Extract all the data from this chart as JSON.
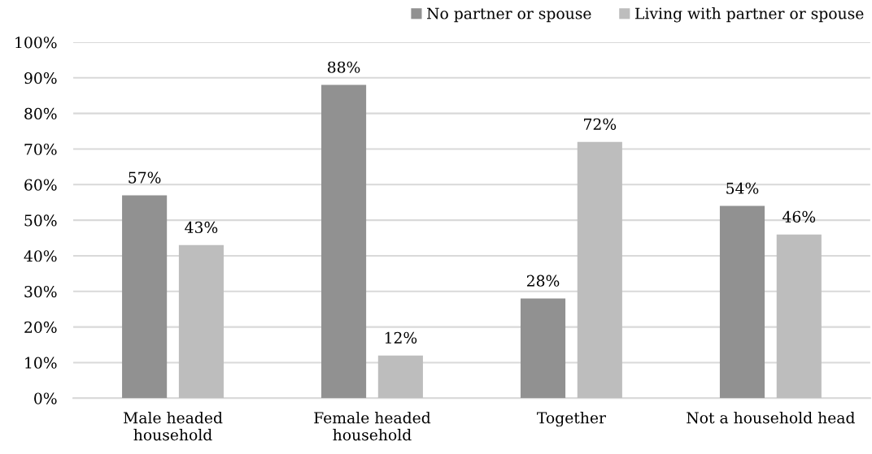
{
  "chart_data": {
    "type": "bar",
    "categories": [
      "Male headed\nhousehold",
      "Female headed\nhousehold",
      "Together",
      "Not a household head"
    ],
    "series": [
      {
        "name": "No partner or spouse",
        "color": "#919191",
        "values": [
          57,
          88,
          28,
          54
        ],
        "value_labels": [
          "57%",
          "88%",
          "28%",
          "54%"
        ]
      },
      {
        "name": "Living with partner or spouse",
        "color": "#bdbdbd",
        "values": [
          43,
          12,
          72,
          46
        ],
        "value_labels": [
          "43%",
          "12%",
          "72%",
          "46%"
        ]
      }
    ],
    "ylim": [
      0,
      100
    ],
    "yticks": [
      {
        "value": 0,
        "label": "0%"
      },
      {
        "value": 10,
        "label": "10%"
      },
      {
        "value": 20,
        "label": "20%"
      },
      {
        "value": 30,
        "label": "30%"
      },
      {
        "value": 40,
        "label": "40%"
      },
      {
        "value": 50,
        "label": "50%"
      },
      {
        "value": 60,
        "label": "60%"
      },
      {
        "value": 70,
        "label": "70%"
      },
      {
        "value": 80,
        "label": "80%"
      },
      {
        "value": 90,
        "label": "90%"
      },
      {
        "value": 100,
        "label": "100%"
      }
    ],
    "grid": "y",
    "legend": "top right"
  }
}
